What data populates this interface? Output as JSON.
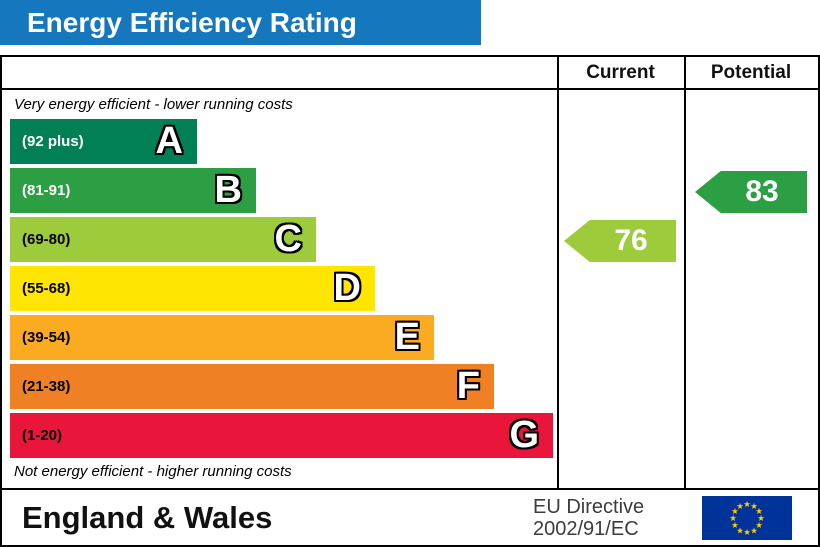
{
  "title": "Energy Efficiency Rating",
  "colors": {
    "header_bg": "#1577bd",
    "header_text": "#ffffff",
    "border": "#000000",
    "flag_bg": "#003399",
    "flag_stars": "#ffcc00"
  },
  "icons": {
    "eu_star": "★"
  },
  "table": {
    "current_header": "Current",
    "potential_header": "Potential",
    "top_note": "Very energy efficient - lower running costs",
    "bottom_note": "Not energy efficient - higher running costs"
  },
  "bands": [
    {
      "letter": "A",
      "range": "(92 plus)",
      "color": "#008054",
      "label_color": "#ffffff"
    },
    {
      "letter": "B",
      "range": "(81-91)",
      "color": "#2c9f45",
      "label_color": "#ffffff"
    },
    {
      "letter": "C",
      "range": "(69-80)",
      "color": "#9dcb3c",
      "label_color": "#000000"
    },
    {
      "letter": "D",
      "range": "(55-68)",
      "color": "#ffe500",
      "label_color": "#000000"
    },
    {
      "letter": "E",
      "range": "(39-54)",
      "color": "#fbab21",
      "label_color": "#000000"
    },
    {
      "letter": "F",
      "range": "(21-38)",
      "color": "#ef8023",
      "label_color": "#000000"
    },
    {
      "letter": "G",
      "range": "(1-20)",
      "color": "#e9153b",
      "label_color": "#000000"
    }
  ],
  "current": {
    "value": "76",
    "band": "C",
    "color": "#9dcb3c"
  },
  "potential": {
    "value": "83",
    "band": "B",
    "color": "#2c9f45"
  },
  "footer": {
    "region": "England & Wales",
    "directive_line1": "EU Directive",
    "directive_line2": "2002/91/EC"
  },
  "chart_data": {
    "type": "bar",
    "title": "Energy Efficiency Rating",
    "categories": [
      "A",
      "B",
      "C",
      "D",
      "E",
      "F",
      "G"
    ],
    "ranges": [
      "92 plus",
      "81-91",
      "69-80",
      "55-68",
      "39-54",
      "21-38",
      "1-20"
    ],
    "current": 76,
    "current_band": "C",
    "potential": 83,
    "potential_band": "B",
    "legend_position": "none",
    "grid": false
  }
}
